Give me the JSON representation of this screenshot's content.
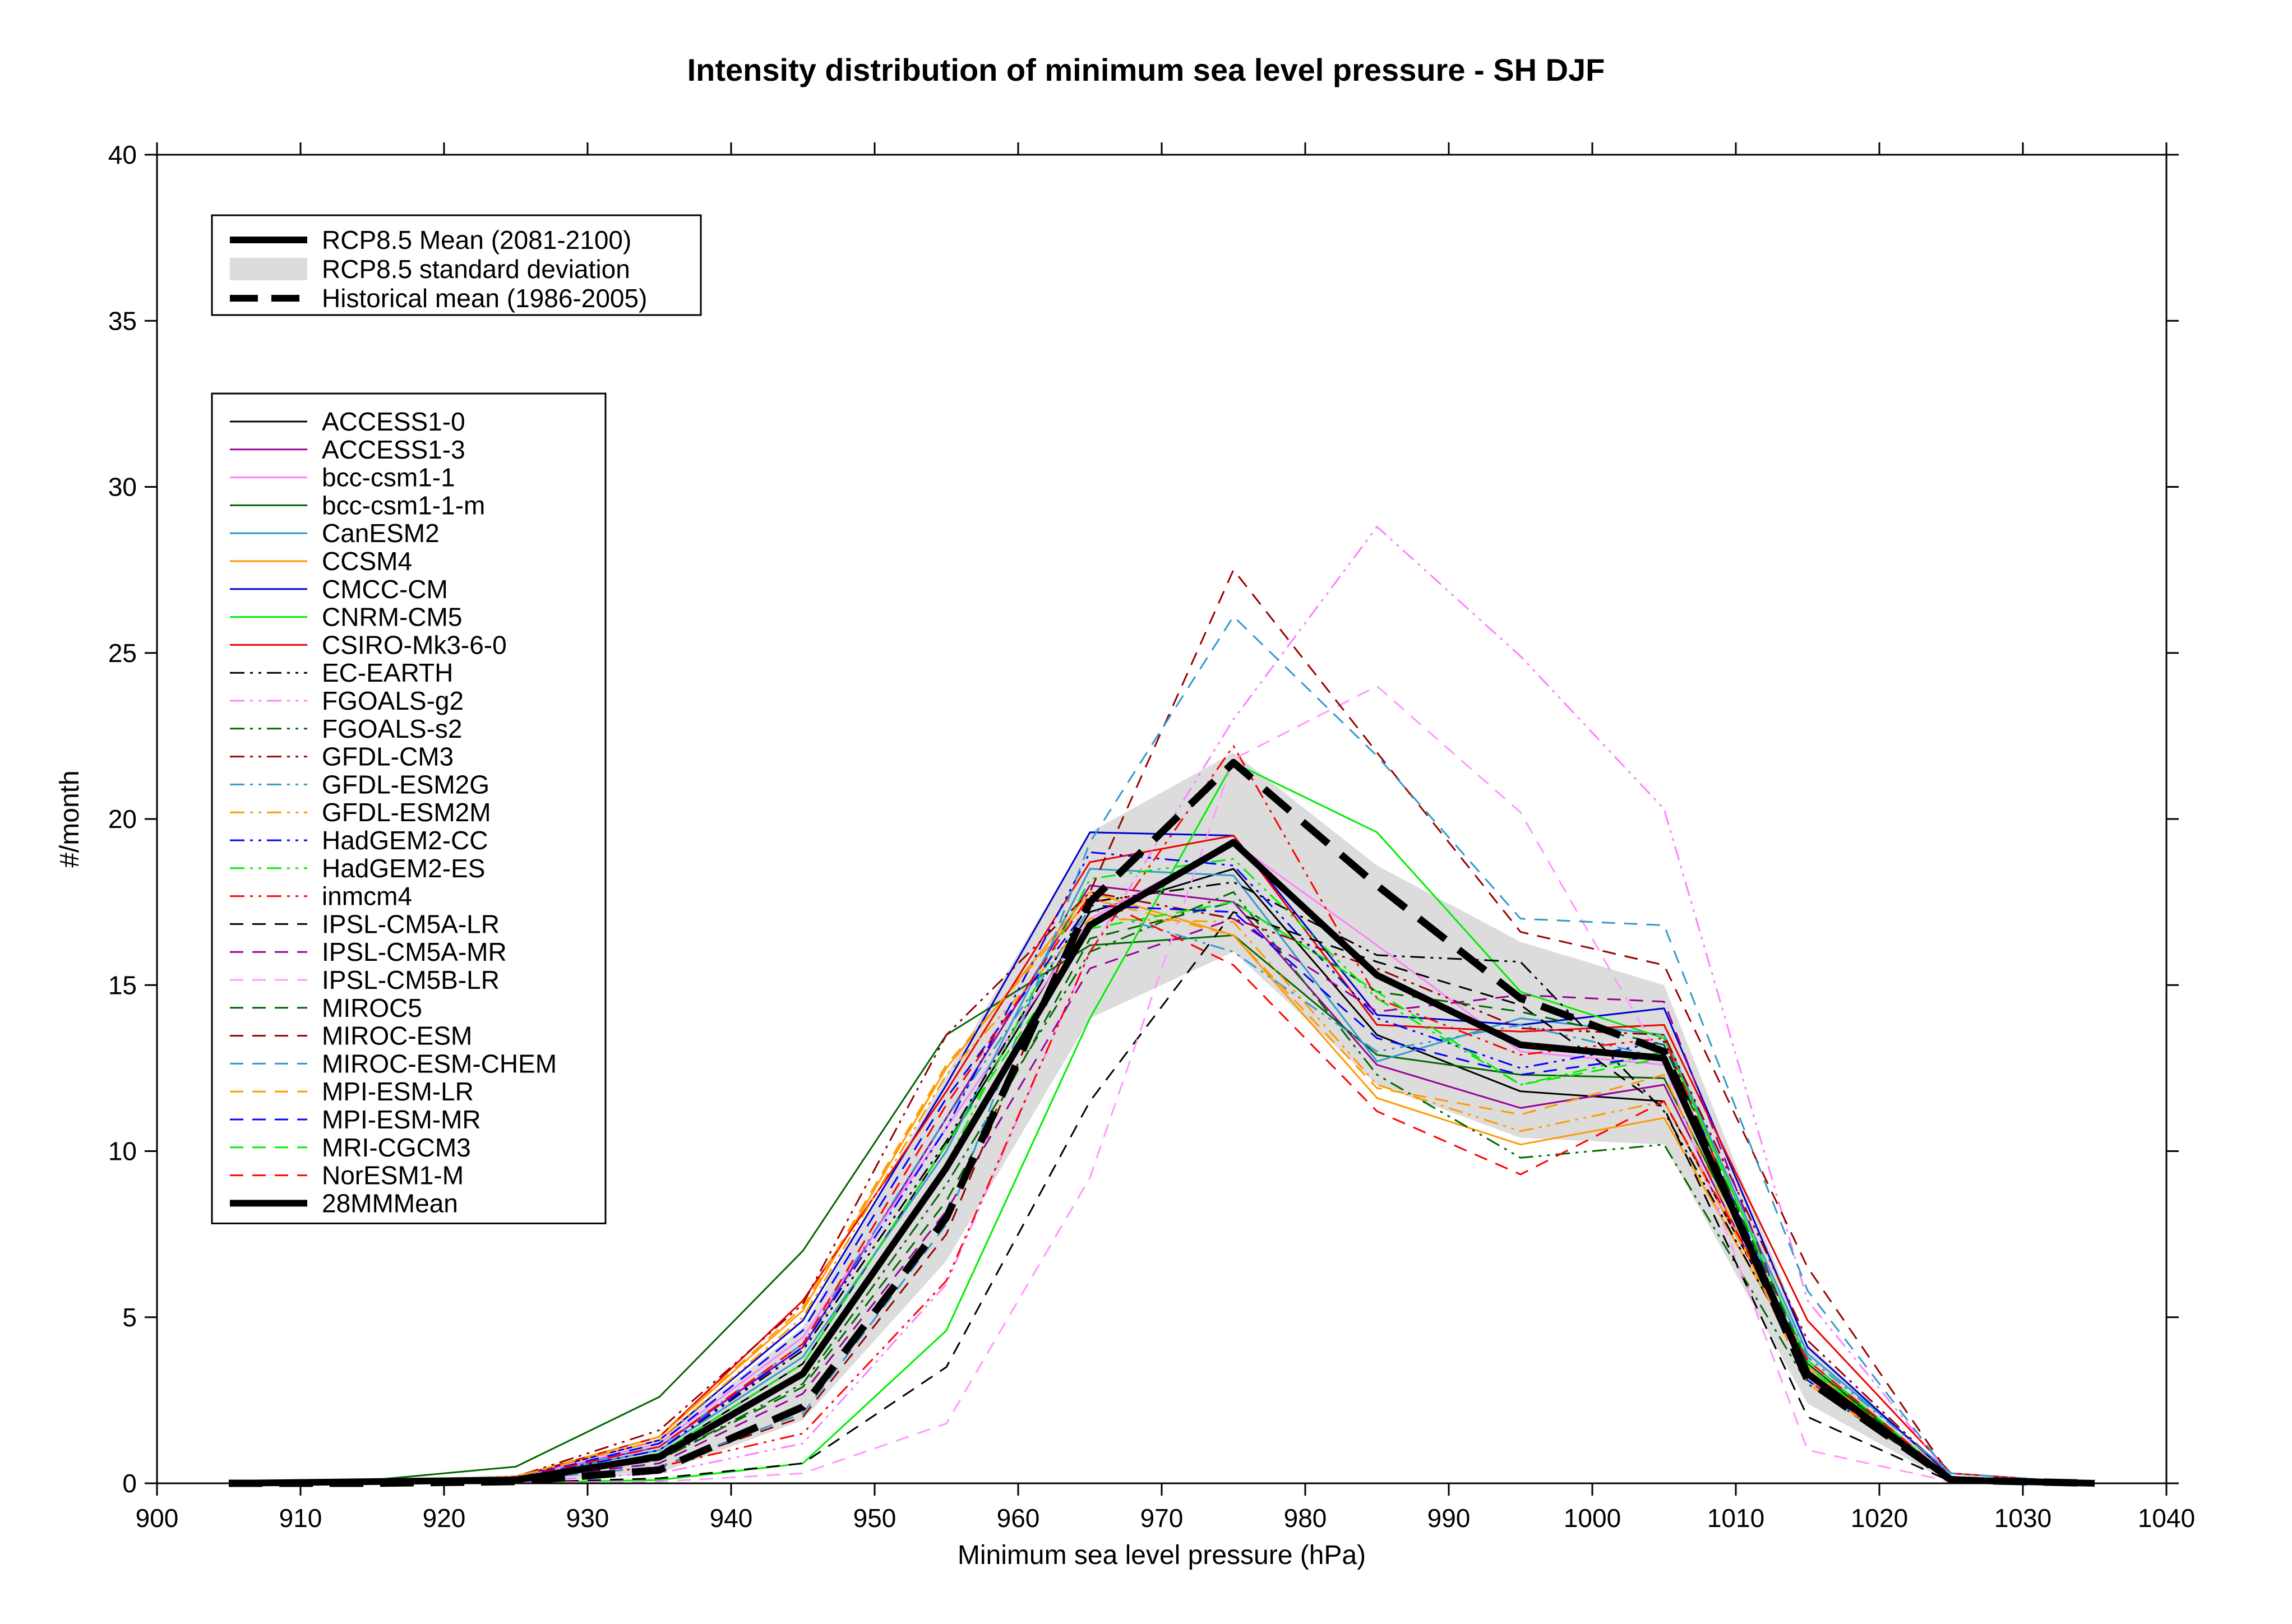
{
  "chart_data": {
    "type": "line",
    "title": "Intensity distribution of minimum sea level pressure - SH DJF",
    "xlabel": "Minimum sea level pressure (hPa)",
    "ylabel": "#/month",
    "xlim": [
      900,
      1040
    ],
    "ylim": [
      0,
      40
    ],
    "x_ticks": [
      900,
      910,
      920,
      930,
      940,
      950,
      960,
      970,
      980,
      990,
      1000,
      1010,
      1020,
      1030,
      1040
    ],
    "y_ticks": [
      0,
      5,
      10,
      15,
      20,
      25,
      30,
      35,
      40
    ],
    "grid": false,
    "legend_placement": "top-left",
    "x": [
      905,
      915,
      925,
      935,
      945,
      955,
      965,
      975,
      985,
      995,
      1005,
      1015,
      1025,
      1035
    ],
    "summary_legend": [
      {
        "key": "rcp_mean",
        "label": "RCP8.5 Mean (2081-2100)"
      },
      {
        "key": "rcp_sd",
        "label": "RCP8.5 standard deviation"
      },
      {
        "key": "hist_mean",
        "label": "Historical mean (1986-2005)"
      }
    ],
    "rcp_mean": [
      0,
      0.05,
      0.1,
      0.8,
      3.3,
      9.5,
      16.8,
      19.3,
      15.3,
      13.2,
      12.8,
      3.3,
      0.1,
      0
    ],
    "rcp_sd_lower": [
      0,
      0,
      0,
      0.3,
      1.9,
      6.7,
      14.0,
      16.0,
      12.0,
      10.4,
      10.2,
      2.4,
      0,
      0
    ],
    "rcp_sd_upper": [
      0,
      0.1,
      0.25,
      1.3,
      4.7,
      12.3,
      19.6,
      22.0,
      18.6,
      16.3,
      15.0,
      4.2,
      0.2,
      0
    ],
    "hist_mean": [
      0,
      0,
      0.05,
      0.4,
      2.3,
      8.0,
      17.5,
      21.7,
      18.0,
      14.6,
      13.0,
      3.1,
      0.1,
      0
    ],
    "series": [
      {
        "name": "ACCESS1-0",
        "color": "#000000",
        "dash": "solid",
        "values": [
          0,
          0.05,
          0.1,
          0.9,
          3.6,
          10.2,
          17.2,
          18.5,
          13.5,
          11.8,
          11.5,
          3.5,
          0.15,
          0
        ]
      },
      {
        "name": "ACCESS1-3",
        "color": "#990099",
        "dash": "solid",
        "values": [
          0,
          0.05,
          0.2,
          1.1,
          4.1,
          11.0,
          18.0,
          17.5,
          12.6,
          11.3,
          12.0,
          3.3,
          0.1,
          0
        ]
      },
      {
        "name": "bcc-csm1-1",
        "color": "#ff80ff",
        "dash": "solid",
        "values": [
          0,
          0.05,
          0.15,
          1.2,
          4.4,
          10.7,
          17.0,
          19.3,
          16.2,
          13.0,
          12.6,
          3.1,
          0.1,
          0
        ]
      },
      {
        "name": "bcc-csm1-1-m",
        "color": "#006600",
        "dash": "solid",
        "values": [
          0,
          0.1,
          0.5,
          2.6,
          7.0,
          13.5,
          16.2,
          16.5,
          12.9,
          12.3,
          12.2,
          3.6,
          0.15,
          0
        ]
      },
      {
        "name": "CanESM2",
        "color": "#3399cc",
        "dash": "solid",
        "values": [
          0,
          0.05,
          0.15,
          1.0,
          3.8,
          10.0,
          18.5,
          18.3,
          12.7,
          14.0,
          13.5,
          3.9,
          0.3,
          0
        ]
      },
      {
        "name": "CCSM4",
        "color": "#ff9900",
        "dash": "solid",
        "values": [
          0,
          0.05,
          0.2,
          1.4,
          5.2,
          12.5,
          17.8,
          16.5,
          11.6,
          10.2,
          11.0,
          3.5,
          0.1,
          0
        ]
      },
      {
        "name": "CMCC-CM",
        "color": "#0000cc",
        "dash": "solid",
        "values": [
          0,
          0.05,
          0.2,
          1.3,
          4.9,
          12.0,
          19.6,
          19.5,
          14.1,
          13.8,
          14.3,
          4.1,
          0.2,
          0
        ]
      },
      {
        "name": "CNRM-CM5",
        "color": "#00ee00",
        "dash": "solid",
        "values": [
          0,
          0,
          0.02,
          0.1,
          0.6,
          4.6,
          14.0,
          21.7,
          19.6,
          14.8,
          13.4,
          3.7,
          0.15,
          0
        ]
      },
      {
        "name": "CSIRO-Mk3-6-0",
        "color": "#ee0000",
        "dash": "solid",
        "values": [
          0,
          0.05,
          0.2,
          1.4,
          5.5,
          11.8,
          18.7,
          19.5,
          13.8,
          13.6,
          13.8,
          4.9,
          0.3,
          0
        ]
      },
      {
        "name": "EC-EARTH",
        "color": "#000000",
        "dash": "dashdotdot",
        "values": [
          0,
          0.05,
          0.15,
          1.0,
          4.0,
          10.3,
          17.5,
          18.1,
          15.9,
          15.7,
          11.2,
          3.4,
          0.1,
          0
        ]
      },
      {
        "name": "FGOALS-g2",
        "color": "#ff80ff",
        "dash": "dashdotdot",
        "values": [
          0,
          0,
          0.05,
          0.3,
          1.2,
          6.0,
          16.0,
          23.0,
          28.8,
          24.9,
          20.3,
          5.5,
          0.2,
          0
        ]
      },
      {
        "name": "FGOALS-s2",
        "color": "#006600",
        "dash": "dashdotdot",
        "values": [
          0,
          0.05,
          0.1,
          0.7,
          3.0,
          9.0,
          16.0,
          17.8,
          12.3,
          9.8,
          10.2,
          3.0,
          0.1,
          0
        ]
      },
      {
        "name": "GFDL-CM3",
        "color": "#990000",
        "dash": "dashdotdot",
        "values": [
          0,
          0.05,
          0.2,
          1.6,
          5.4,
          13.5,
          17.8,
          17.0,
          15.5,
          13.7,
          13.5,
          4.3,
          0.2,
          0
        ]
      },
      {
        "name": "GFDL-ESM2G",
        "color": "#3399cc",
        "dash": "dashdotdot",
        "values": [
          0,
          0.05,
          0.15,
          1.1,
          4.2,
          11.0,
          17.3,
          16.0,
          13.0,
          13.8,
          12.8,
          3.8,
          0.3,
          0
        ]
      },
      {
        "name": "GFDL-ESM2M",
        "color": "#ff9900",
        "dash": "dashdotdot",
        "values": [
          0,
          0.05,
          0.2,
          1.3,
          5.0,
          12.3,
          17.0,
          16.9,
          12.0,
          10.6,
          11.5,
          3.5,
          0.15,
          0
        ]
      },
      {
        "name": "HadGEM2-CC",
        "color": "#0000ff",
        "dash": "dashdotdot",
        "values": [
          0,
          0.05,
          0.15,
          1.0,
          4.1,
          10.7,
          19.0,
          18.6,
          14.0,
          12.5,
          13.3,
          3.4,
          0.15,
          0
        ]
      },
      {
        "name": "HadGEM2-ES",
        "color": "#00ee00",
        "dash": "dashdotdot",
        "values": [
          0,
          0.05,
          0.1,
          0.8,
          3.2,
          9.6,
          18.2,
          18.8,
          14.6,
          12.0,
          13.0,
          3.4,
          0.1,
          0
        ]
      },
      {
        "name": "inmcm4",
        "color": "#ff0000",
        "dash": "dashdotdot",
        "values": [
          0,
          0.05,
          0.1,
          0.5,
          1.5,
          6.1,
          16.0,
          22.2,
          14.6,
          12.9,
          13.4,
          3.1,
          0.1,
          0
        ]
      },
      {
        "name": "IPSL-CM5A-LR",
        "color": "#000000",
        "dash": "dashed",
        "values": [
          0,
          0,
          0.02,
          0.15,
          0.6,
          3.5,
          11.5,
          17.2,
          15.7,
          14.4,
          11.3,
          2.0,
          0.05,
          0
        ]
      },
      {
        "name": "IPSL-CM5A-MR",
        "color": "#990099",
        "dash": "dashed",
        "values": [
          0,
          0.02,
          0.1,
          0.6,
          2.7,
          8.2,
          15.5,
          17.0,
          14.2,
          14.7,
          14.5,
          3.3,
          0.1,
          0
        ]
      },
      {
        "name": "IPSL-CM5B-LR",
        "color": "#ff99ff",
        "dash": "dashed",
        "values": [
          0,
          0,
          0.02,
          0.05,
          0.3,
          1.8,
          9.2,
          21.8,
          24.0,
          20.2,
          12.6,
          1.0,
          0.05,
          0
        ]
      },
      {
        "name": "MIROC5",
        "color": "#006600",
        "dash": "dashed",
        "values": [
          0,
          0.05,
          0.1,
          0.7,
          2.9,
          8.5,
          16.4,
          17.5,
          14.8,
          14.2,
          13.2,
          3.6,
          0.1,
          0
        ]
      },
      {
        "name": "MIROC-ESM",
        "color": "#990000",
        "dash": "dashed",
        "values": [
          0,
          0.02,
          0.1,
          0.5,
          2.0,
          7.5,
          17.8,
          27.5,
          22.0,
          16.6,
          15.6,
          6.5,
          0.2,
          0
        ]
      },
      {
        "name": "MIROC-ESM-CHEM",
        "color": "#3399cc",
        "dash": "dashed",
        "values": [
          0,
          0.02,
          0.1,
          0.5,
          2.1,
          7.8,
          19.3,
          26.1,
          21.9,
          17.0,
          16.8,
          5.8,
          0.2,
          0
        ]
      },
      {
        "name": "MPI-ESM-LR",
        "color": "#ff9900",
        "dash": "dashed",
        "values": [
          0,
          0.05,
          0.2,
          1.4,
          5.3,
          12.6,
          17.6,
          16.5,
          11.9,
          11.1,
          12.3,
          3.0,
          0.15,
          0
        ]
      },
      {
        "name": "MPI-ESM-MR",
        "color": "#0000ff",
        "dash": "dashed",
        "values": [
          0,
          0.05,
          0.15,
          1.2,
          4.6,
          11.6,
          17.4,
          17.2,
          13.4,
          12.3,
          12.9,
          3.1,
          0.1,
          0
        ]
      },
      {
        "name": "MRI-CGCM3",
        "color": "#00ee00",
        "dash": "dashed",
        "values": [
          0,
          0.05,
          0.1,
          0.9,
          3.6,
          10.2,
          16.7,
          17.5,
          14.8,
          12.0,
          12.8,
          3.5,
          0.1,
          0
        ]
      },
      {
        "name": "NorESM1-M",
        "color": "#ff0000",
        "dash": "dashed",
        "values": [
          0,
          0.05,
          0.15,
          1.1,
          4.2,
          11.4,
          17.7,
          15.6,
          11.2,
          9.3,
          11.5,
          3.7,
          0.15,
          0
        ]
      }
    ],
    "multimodel_mean_label": "28MMMean"
  }
}
